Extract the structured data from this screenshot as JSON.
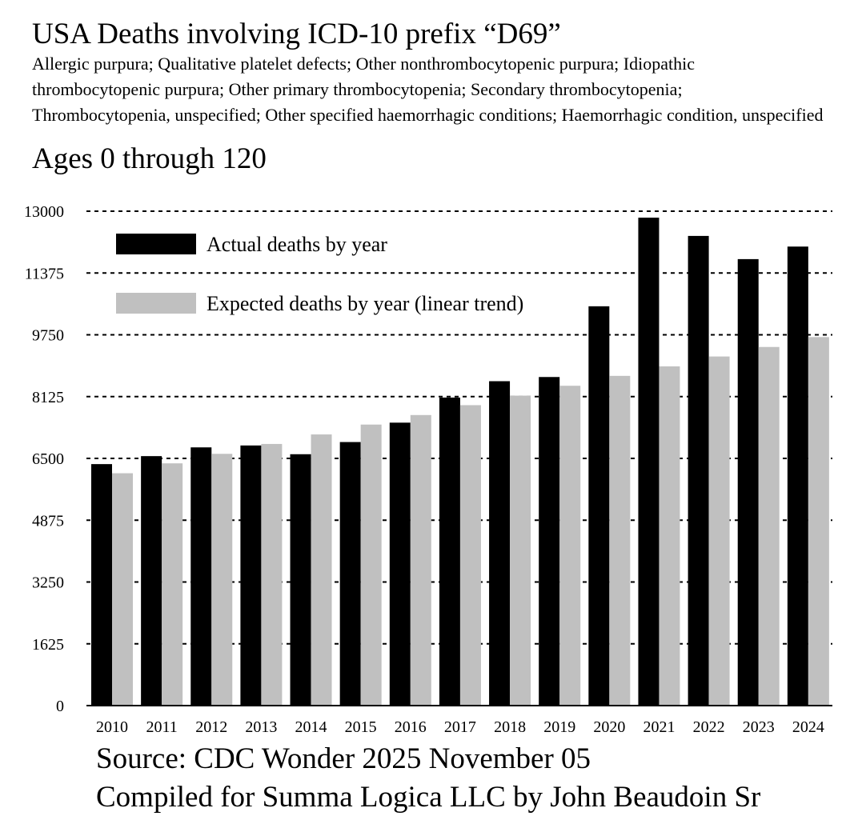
{
  "title": "USA Deaths involving ICD-10 prefix “D69”",
  "subtitle": "Allergic purpura; Qualitative platelet defects; Other nonthrombocytopenic purpura; Idiopathic thrombocytopenic purpura; Other primary thrombocytopenia; Secondary thrombocytopenia; Thrombocytopenia, unspecified; Other specified haemorrhagic conditions; Haemorrhagic condition, unspecified",
  "ages": "Ages 0 through 120",
  "footer": {
    "source": "Source: CDC Wonder 2025 November 05",
    "compiled": "Compiled for Summa Logica LLC by John Beaudoin Sr"
  },
  "colors": {
    "actual": "#000000",
    "expected": "#c0c0c0",
    "grid": "#000000"
  },
  "chart_data": {
    "type": "bar",
    "title": "USA Deaths involving ICD-10 prefix “D69”",
    "xlabel": "",
    "ylabel": "",
    "categories": [
      "2010",
      "2011",
      "2012",
      "2013",
      "2014",
      "2015",
      "2016",
      "2017",
      "2018",
      "2019",
      "2020",
      "2021",
      "2022",
      "2023",
      "2024"
    ],
    "series": [
      {
        "name": "Actual deaths by year",
        "values": [
          6350,
          6560,
          6790,
          6840,
          6610,
          6930,
          7440,
          8100,
          8530,
          8640,
          10500,
          12830,
          12350,
          11740,
          12070
        ]
      },
      {
        "name": "Expected deaths by year (linear trend)",
        "values": [
          6110,
          6370,
          6620,
          6880,
          7130,
          7390,
          7640,
          7900,
          8150,
          8410,
          8670,
          8920,
          9180,
          9430,
          9690
        ]
      }
    ],
    "ylim": [
      0,
      13000
    ],
    "yticks": [
      0,
      1625,
      3250,
      4875,
      6500,
      8125,
      9750,
      11375,
      13000
    ],
    "grid": true,
    "legend_position": "top-left"
  }
}
